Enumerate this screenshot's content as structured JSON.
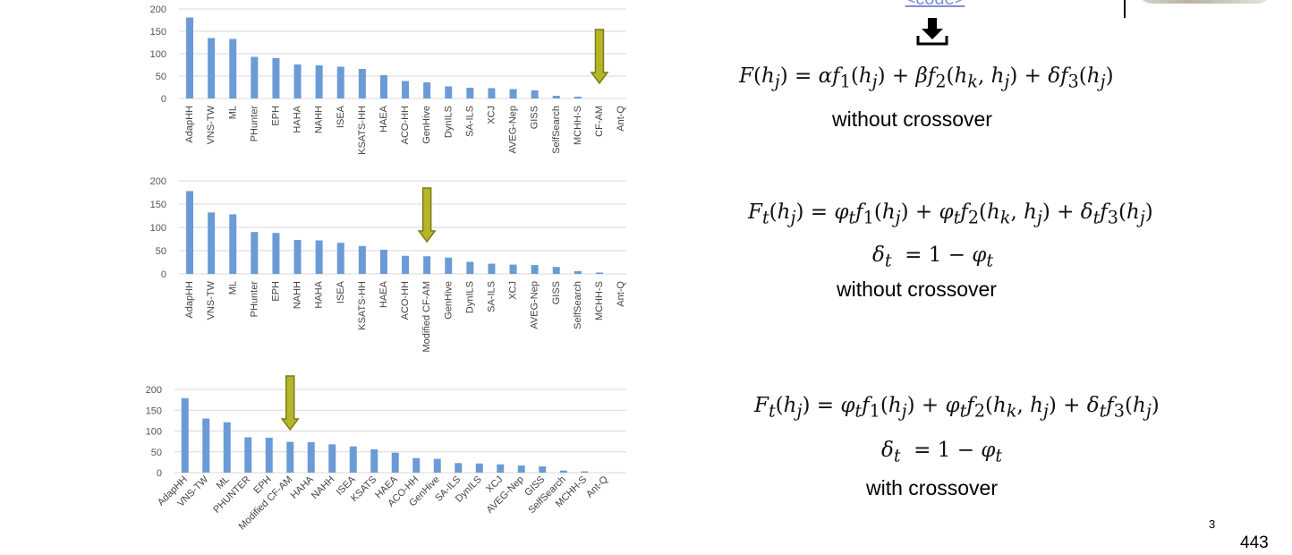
{
  "header": {
    "code_link": "<code>"
  },
  "chart_data": [
    {
      "type": "bar",
      "categories": [
        "AdapHH",
        "VNS-TW",
        "ML",
        "PHunter",
        "EPH",
        "HAHA",
        "NAHH",
        "ISEA",
        "KSATS-HH",
        "HAEA",
        "ACO-HH",
        "GenHive",
        "DynILS",
        "SA-ILS",
        "XCJ",
        "AVEG-Nep",
        "GISS",
        "SelfSearch",
        "MCHH-S",
        "CF-AM",
        "Ant-Q"
      ],
      "values": [
        181,
        135,
        133,
        93,
        90,
        76,
        74,
        71,
        66,
        52,
        39,
        36,
        27,
        24,
        23,
        21,
        18,
        6,
        4,
        0,
        0
      ],
      "yticks": [
        0,
        50,
        100,
        150,
        200
      ],
      "ylim": [
        0,
        200
      ],
      "highlight": "CF-AM",
      "color": "#6b9bd6"
    },
    {
      "type": "bar",
      "categories": [
        "AdapHH",
        "VNS-TW",
        "ML",
        "PHunter",
        "EPH",
        "NAHH",
        "HAHA",
        "ISEA",
        "KSATS-HH",
        "HAEA",
        "ACO-HH",
        "Modified CF-AM",
        "GenHive",
        "DynILS",
        "SA-ILS",
        "XCJ",
        "AVEG-Nep",
        "GISS",
        "SelfSearch",
        "MCHH-S",
        "Ant-Q"
      ],
      "values": [
        178,
        132,
        128,
        90,
        88,
        73,
        72,
        67,
        60,
        52,
        39,
        38,
        35,
        26,
        22,
        20,
        19,
        15,
        6,
        3,
        0
      ],
      "yticks": [
        0,
        50,
        100,
        150,
        200
      ],
      "ylim": [
        0,
        200
      ],
      "highlight": "Modified CF-AM",
      "color": "#6b9bd6"
    },
    {
      "type": "bar",
      "categories": [
        "AdapHH",
        "VNS-TW",
        "ML",
        "PHUNTER",
        "EPH",
        "Modified CF-AM",
        "HAHA",
        "NAHH",
        "ISEA",
        "KSATS",
        "HAEA",
        "ACO-HH",
        "GenHive",
        "SA-ILS",
        "DynILS",
        "XCJ",
        "AVEG-Nep",
        "GISS",
        "SelfSearch",
        "MCHH-S",
        "Ant-Q"
      ],
      "values": [
        179,
        130,
        121,
        85,
        84,
        74,
        73,
        68,
        63,
        56,
        48,
        35,
        33,
        23,
        22,
        20,
        17,
        15,
        5,
        3,
        0
      ],
      "yticks": [
        0,
        50,
        100,
        150,
        200
      ],
      "ylim": [
        0,
        200
      ],
      "highlight": "Modified CF-AM",
      "color": "#6b9bd6"
    }
  ],
  "formulas": {
    "f1_caption": "without crossover",
    "f2_caption": "without crossover",
    "f3_caption": "with crossover"
  },
  "footer": {
    "slide_number": "3",
    "page_number": "443"
  },
  "colors": {
    "bar": "#6b9bd6",
    "arrow_fill": "#b5b52a",
    "arrow_stroke": "#7c7c16"
  }
}
